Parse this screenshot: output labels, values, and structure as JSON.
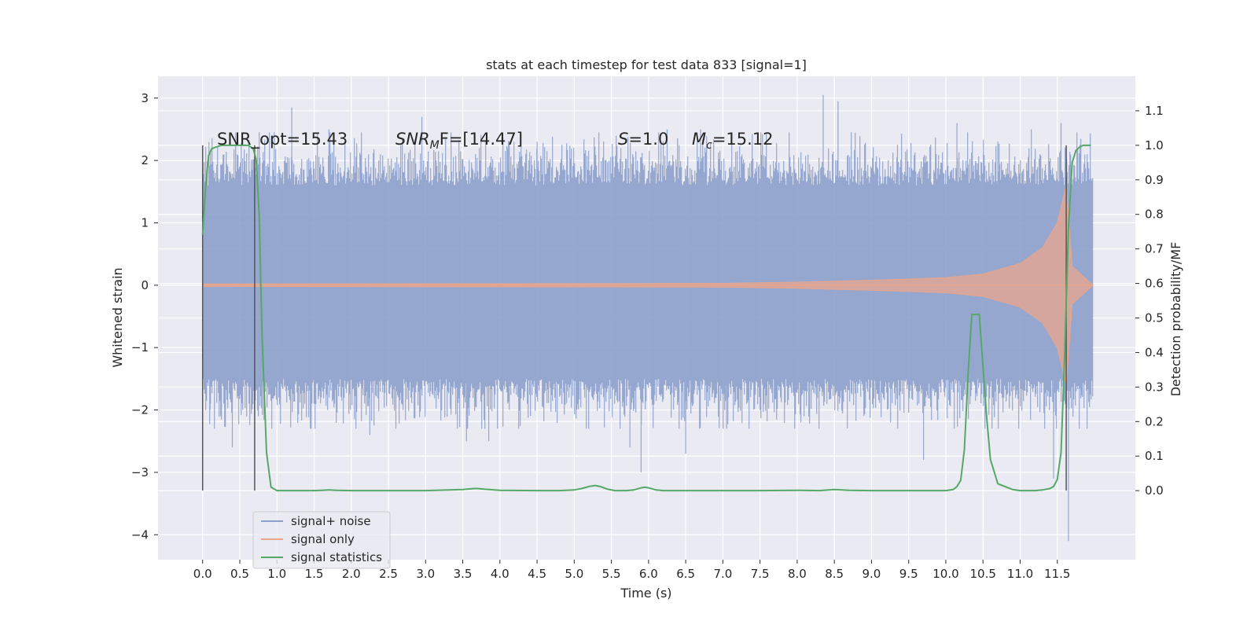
{
  "chart_data": {
    "type": "line",
    "title": "stats at each timestep for test data 833 [signal=1]",
    "xlabel": "Time (s)",
    "ylabel_left": "Whitened strain",
    "ylabel_right": "Detection probability/MF",
    "xlim": [
      -0.6,
      12.55
    ],
    "ylim_left": [
      -4.4,
      3.35
    ],
    "ylim_right": [
      -0.2,
      1.2
    ],
    "x_ticks": [
      0.0,
      0.5,
      1.0,
      1.5,
      2.0,
      2.5,
      3.0,
      3.5,
      4.0,
      4.5,
      5.0,
      5.5,
      6.0,
      6.5,
      7.0,
      7.5,
      8.0,
      8.5,
      9.0,
      9.5,
      10.0,
      10.5,
      11.0,
      11.5
    ],
    "x_tick_labels": [
      "0.0",
      "0.5",
      "1.0",
      "1.5",
      "2.0",
      "2.5",
      "3.0",
      "3.5",
      "4.0",
      "4.5",
      "5.0",
      "5.5",
      "6.0",
      "6.5",
      "7.0",
      "7.5",
      "8.0",
      "8.5",
      "9.0",
      "9.5",
      "10.0",
      "10.5",
      "11.0",
      "11.5"
    ],
    "y_left_ticks": [
      3,
      2,
      1,
      0,
      -1,
      -2,
      -3,
      -4
    ],
    "y_left_tick_labels": [
      "3",
      "2",
      "1",
      "0",
      "−1",
      "−2",
      "−3",
      "−4"
    ],
    "y_right_ticks": [
      1.1,
      1.0,
      0.9,
      0.8,
      0.7,
      0.6,
      0.5,
      0.4,
      0.3,
      0.2,
      0.1,
      0.0
    ],
    "y_right_tick_labels": [
      "1.1",
      "1.0",
      "0.9",
      "0.8",
      "0.7",
      "0.6",
      "0.5",
      "0.4",
      "0.3",
      "0.2",
      "0.1",
      "0.0"
    ],
    "grid": true,
    "legend_position": "lower-left",
    "annotations": {
      "snr_opt": "SNR_opt=15.43",
      "snr_mf_base": "SNR",
      "snr_mf_sub": "M",
      "snr_mf_rest": "F=[14.47]",
      "s_sym": "S",
      "s_val": "=1.0",
      "mc_sym": "M",
      "mc_sub": "c",
      "mc_val": "=15.12"
    },
    "vlines_x": [
      0.0,
      0.7,
      11.62
    ],
    "series": [
      {
        "name": "signal+ noise",
        "color": "#8da0cb",
        "axis": "left",
        "t_range": [
          0.0,
          11.98
        ],
        "typical_envelope": [
          -1.5,
          1.6
        ],
        "spikes": [
          [
            0.1,
            -2.0
          ],
          [
            0.4,
            -2.6
          ],
          [
            0.75,
            -2.1
          ],
          [
            1.2,
            2.85
          ],
          [
            1.5,
            -1.9
          ],
          [
            1.7,
            2.5
          ],
          [
            2.25,
            -2.4
          ],
          [
            2.6,
            -2.3
          ],
          [
            2.95,
            2.7
          ],
          [
            3.55,
            -2.5
          ],
          [
            3.85,
            -2.5
          ],
          [
            4.1,
            2.2
          ],
          [
            4.5,
            2.3
          ],
          [
            4.9,
            2.1
          ],
          [
            5.75,
            -2.6
          ],
          [
            5.9,
            -3.0
          ],
          [
            6.25,
            2.5
          ],
          [
            6.5,
            -2.7
          ],
          [
            6.7,
            2.5
          ],
          [
            7.05,
            -2.3
          ],
          [
            7.5,
            -2.0
          ],
          [
            8.05,
            -2.2
          ],
          [
            8.35,
            3.05
          ],
          [
            8.55,
            2.95
          ],
          [
            8.9,
            -2.0
          ],
          [
            9.35,
            2.25
          ],
          [
            9.7,
            -2.8
          ],
          [
            10.15,
            2.6
          ],
          [
            10.7,
            2.3
          ],
          [
            11.15,
            2.5
          ],
          [
            11.45,
            -3.1
          ],
          [
            11.55,
            2.6
          ],
          [
            11.65,
            -4.1
          ],
          [
            11.9,
            -2.3
          ]
        ]
      },
      {
        "name": "signal only",
        "color": "#e8a58c",
        "axis": "left",
        "t_range": [
          0.0,
          11.98
        ],
        "amplitude_samples": [
          [
            0.0,
            0.02
          ],
          [
            7.0,
            0.03
          ],
          [
            8.0,
            0.05
          ],
          [
            9.0,
            0.08
          ],
          [
            10.0,
            0.12
          ],
          [
            10.5,
            0.18
          ],
          [
            11.0,
            0.35
          ],
          [
            11.3,
            0.6
          ],
          [
            11.5,
            1.0
          ],
          [
            11.62,
            1.6
          ],
          [
            11.7,
            0.3
          ],
          [
            11.98,
            0.0
          ]
        ]
      },
      {
        "name": "signal statistics",
        "color": "#55a868",
        "axis": "right",
        "x": [
          0.0,
          0.04,
          0.08,
          0.12,
          0.18,
          0.25,
          0.35,
          0.45,
          0.55,
          0.62,
          0.68,
          0.72,
          0.76,
          0.8,
          0.86,
          0.92,
          1.0,
          1.5,
          1.6,
          1.7,
          1.8,
          2.0,
          3.0,
          3.5,
          3.65,
          3.7,
          3.8,
          4.0,
          4.5,
          4.8,
          5.0,
          5.1,
          5.2,
          5.28,
          5.35,
          5.45,
          5.55,
          5.7,
          5.8,
          5.9,
          5.95,
          6.0,
          6.1,
          6.2,
          6.5,
          7.0,
          7.5,
          8.0,
          8.3,
          8.5,
          8.7,
          9.0,
          9.5,
          10.0,
          10.1,
          10.15,
          10.2,
          10.25,
          10.3,
          10.35,
          10.4,
          10.45,
          10.5,
          10.55,
          10.6,
          10.7,
          10.9,
          11.0,
          11.2,
          11.3,
          11.4,
          11.45,
          11.5,
          11.55,
          11.6,
          11.65,
          11.7,
          11.75,
          11.8,
          11.85,
          11.9,
          11.95
        ],
        "y": [
          0.74,
          0.88,
          0.97,
          0.99,
          0.995,
          1.0,
          1.0,
          1.0,
          1.0,
          1.0,
          0.99,
          0.96,
          0.8,
          0.45,
          0.11,
          0.01,
          0.0,
          0.0,
          0.001,
          0.002,
          0.001,
          0.0,
          0.0,
          0.003,
          0.006,
          0.006,
          0.004,
          0.001,
          0.0,
          0.0,
          0.002,
          0.006,
          0.012,
          0.015,
          0.012,
          0.004,
          0.0,
          0.0,
          0.002,
          0.008,
          0.01,
          0.008,
          0.002,
          0.0,
          0.0,
          0.0,
          0.0,
          0.001,
          0.0,
          0.003,
          0.001,
          0.0,
          0.0,
          0.0,
          0.003,
          0.012,
          0.03,
          0.12,
          0.34,
          0.51,
          0.51,
          0.51,
          0.36,
          0.21,
          0.09,
          0.02,
          0.003,
          0.0,
          0.0,
          0.002,
          0.006,
          0.012,
          0.032,
          0.11,
          0.4,
          0.76,
          0.95,
          0.985,
          0.995,
          1.0,
          1.0,
          1.0
        ]
      }
    ]
  }
}
